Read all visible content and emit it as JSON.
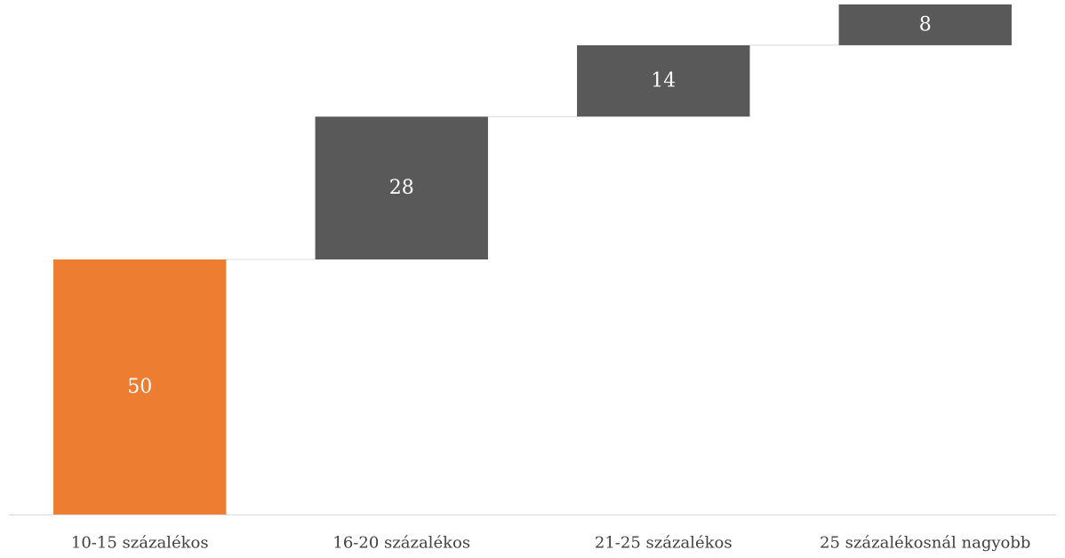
{
  "chart_data": {
    "type": "bar",
    "subtype": "waterfall",
    "title": "",
    "xlabel": "",
    "ylabel": "",
    "categories": [
      "10-15 százalékos",
      "16-20 százalékos",
      "21-25 százalékos",
      "25 százalékosnál nagyobb"
    ],
    "values": [
      50,
      28,
      14,
      8
    ],
    "bar_types": [
      "total",
      "increase",
      "increase",
      "increase"
    ],
    "data_labels": [
      "50",
      "28",
      "14",
      "8"
    ],
    "ylim": [
      0,
      100
    ],
    "grid": false,
    "legend": "none",
    "colors": {
      "total": "#ED7D31",
      "increase": "#595959",
      "label": "#ffffff",
      "axis": "#D9D9D9",
      "connector": "#D9D9D9",
      "tick_text": "#404040"
    }
  }
}
